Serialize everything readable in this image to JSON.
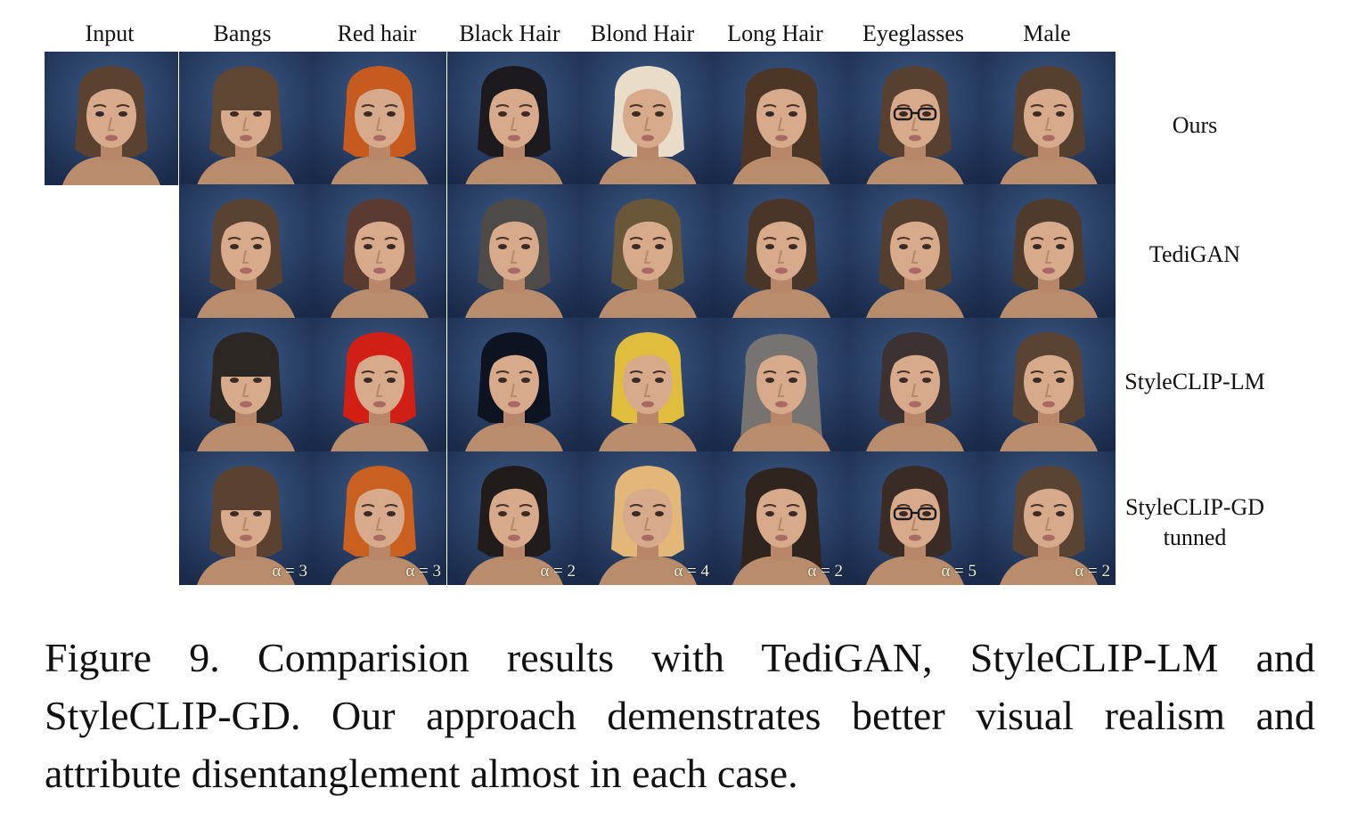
{
  "columns": [
    "Input",
    "Bangs",
    "Red hair",
    "Black Hair",
    "Blond Hair",
    "Long Hair",
    "Eyeglasses",
    "Male"
  ],
  "rows": [
    {
      "label_lines": [
        "Ours"
      ],
      "start_col": 0,
      "hair_colors": [
        "#5a4130",
        "#5e4633",
        "#c75a1e",
        "#1c1a1e",
        "#e9ddc9",
        "#4d3626",
        "#57402f",
        "#55402f"
      ],
      "variants": [
        "short",
        "bangs",
        "short",
        "short",
        "short",
        "long",
        "glasses",
        "short"
      ],
      "alphas": [
        "",
        "",
        "",
        "",
        "",
        "",
        "",
        ""
      ]
    },
    {
      "label_lines": [
        "TediGAN"
      ],
      "start_col": 1,
      "hair_colors": [
        "",
        "#5a4232",
        "#5b3a32",
        "#4d4a48",
        "#6a5638",
        "#4a3628",
        "#543e2f",
        "#4f3b2c"
      ],
      "variants": [
        "",
        "short",
        "short",
        "short",
        "short",
        "short",
        "short",
        "short"
      ],
      "alphas": [
        "",
        "",
        "",
        "",
        "",
        "",
        "",
        ""
      ]
    },
    {
      "label_lines": [
        "StyleCLIP-LM"
      ],
      "start_col": 1,
      "hair_colors": [
        "",
        "#2d2724",
        "#d21f16",
        "#0d1320",
        "#e0bd3c",
        "#777370",
        "#3c3231",
        "#5a4332"
      ],
      "variants": [
        "",
        "bangs",
        "short",
        "short",
        "short",
        "long",
        "short",
        "short"
      ],
      "alphas": [
        "",
        "",
        "",
        "",
        "",
        "",
        "",
        ""
      ]
    },
    {
      "label_lines": [
        "StyleCLIP-GD",
        "tunned"
      ],
      "start_col": 1,
      "hair_colors": [
        "",
        "#5a4130",
        "#c9601f",
        "#211b1a",
        "#e2b777",
        "#2f241e",
        "#3a2c25",
        "#5a4332"
      ],
      "variants": [
        "",
        "bangs",
        "short",
        "short",
        "short",
        "long",
        "glasses",
        "short"
      ],
      "alphas": [
        "",
        "α = 3",
        "α = 3",
        "α = 2",
        "α = 4",
        "α = 2",
        "α = 5",
        "α = 2"
      ]
    }
  ],
  "caption": "Figure 9. Comparision results with TediGAN, StyleCLIP-LM and StyleCLIP-GD. Our approach demenstrates better visual realism and attribute disentanglement almost in each case.",
  "colors": {
    "background_dark": "#1a2a4a",
    "background_light": "#3c5a86",
    "skin": "#d8aa8c",
    "skin_shadow": "#b8876a",
    "shirt": "#b98d6b"
  }
}
